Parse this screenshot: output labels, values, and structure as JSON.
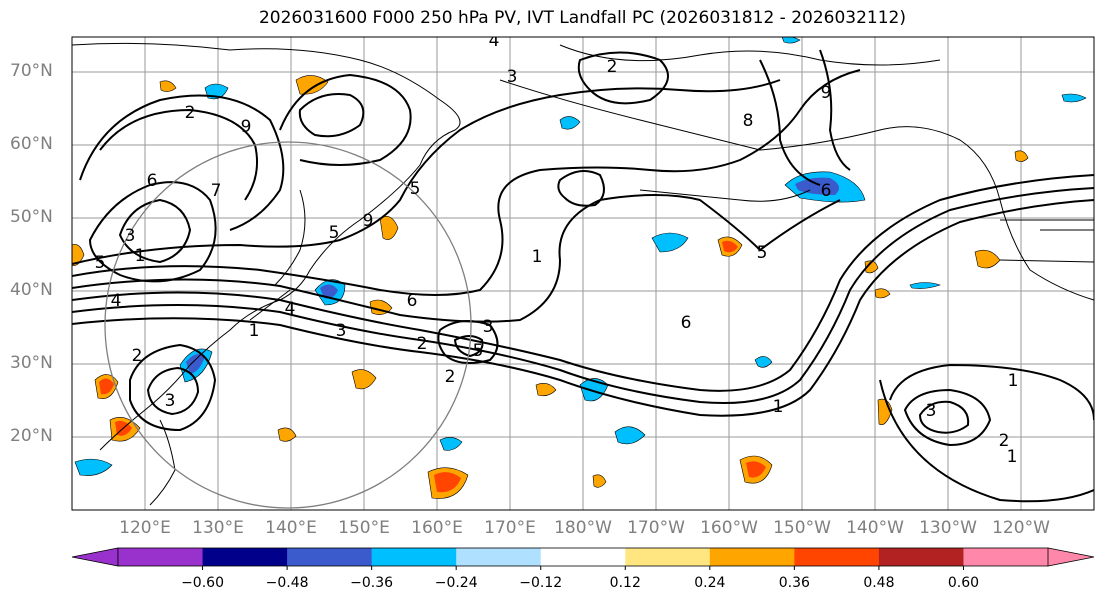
{
  "title": "2026031600 F000 250 hPa PV, IVT Landfall PC (2026031812 - 2026032112)",
  "map": {
    "lat_labels": [
      "70°N",
      "60°N",
      "50°N",
      "40°N",
      "30°N",
      "20°N"
    ],
    "lon_labels": [
      "120°E",
      "130°E",
      "140°E",
      "150°E",
      "160°E",
      "170°E",
      "180°W",
      "170°W",
      "160°W",
      "150°W",
      "140°W",
      "130°W",
      "120°W"
    ],
    "contour_labels": [
      "4",
      "2",
      "8",
      "9",
      "3",
      "1",
      "2",
      "9",
      "7",
      "6",
      "1",
      "4",
      "5",
      "3",
      "9",
      "5",
      "6",
      "5",
      "4",
      "1",
      "6",
      "5",
      "2",
      "6",
      "3",
      "2",
      "5",
      "3",
      "2",
      "3",
      "1",
      "1",
      "3",
      "2",
      "1"
    ]
  },
  "colorbar": {
    "colors": [
      "#9932CC",
      "#00008B",
      "#3B5BCC",
      "#00BFFF",
      "#B0E0FF",
      "#FFFFFF",
      "#FFE680",
      "#FFA500",
      "#FF4500",
      "#B22222",
      "#FF88AA"
    ],
    "ticks": [
      "−0.60",
      "−0.48",
      "−0.36",
      "−0.24",
      "−0.12",
      "0.12",
      "0.24",
      "0.36",
      "0.48",
      "0.60"
    ]
  }
}
